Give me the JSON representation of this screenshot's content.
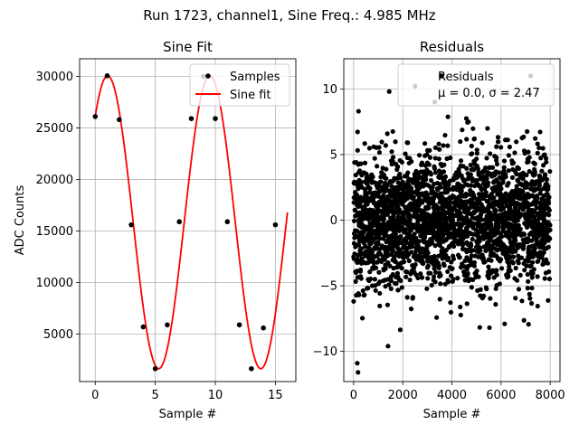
{
  "figure": {
    "suptitle": "Run 1723, channel1, Sine Freq.: 4.985 MHz"
  },
  "chart_data": [
    {
      "type": "scatter+line",
      "title": "Sine Fit",
      "xlabel": "Sample #",
      "ylabel": "ADC Counts",
      "xlim": [
        -1.3,
        16.7
      ],
      "ylim": [
        400,
        31700
      ],
      "xticks": [
        0,
        5,
        10,
        15
      ],
      "yticks": [
        5000,
        10000,
        15000,
        20000,
        25000,
        30000
      ],
      "grid": true,
      "legend": {
        "placement": "top-right",
        "entries": [
          {
            "label": "Samples",
            "marker": "dot",
            "color": "#000000"
          },
          {
            "label": "Sine fit",
            "marker": "line",
            "color": "#ff0000"
          }
        ]
      },
      "samples": {
        "x": [
          0,
          1,
          2,
          3,
          4,
          5,
          6,
          7,
          8,
          9,
          10,
          11,
          12,
          13,
          14,
          15
        ],
        "y": [
          26100,
          30050,
          25800,
          15600,
          5700,
          1650,
          5900,
          15900,
          25900,
          30000,
          25900,
          15900,
          5900,
          1650,
          5600,
          15600
        ]
      },
      "fit": {
        "type": "sine",
        "offset": 15850,
        "amplitude": 14200,
        "period_samples": 8.5,
        "x_range": [
          0,
          16
        ],
        "color": "#ff0000"
      }
    },
    {
      "type": "scatter",
      "title": "Residuals",
      "xlabel": "Sample #",
      "ylabel": "",
      "xlim": [
        -400,
        8400
      ],
      "ylim": [
        -12.3,
        12.3
      ],
      "xticks": [
        0,
        2000,
        4000,
        6000,
        8000
      ],
      "yticks": [
        -10,
        -5,
        0,
        5,
        10
      ],
      "grid": true,
      "legend": {
        "placement": "top-right",
        "entries": [
          {
            "label": "Residuals",
            "marker": "dot",
            "color": "#000000"
          },
          {
            "label": "μ = 0.0, σ = 2.47",
            "marker": "none"
          }
        ]
      },
      "distribution": {
        "n_samples": 8000,
        "mean": 0.0,
        "std": 2.47,
        "x_range": [
          0,
          8000
        ]
      },
      "notable_points": {
        "x": [
          150,
          180,
          2500,
          3300,
          7200,
          1450,
          200,
          1400
        ],
        "y": [
          -10.9,
          -11.6,
          10.2,
          9.0,
          11.0,
          9.8,
          8.3,
          -9.6
        ]
      }
    }
  ]
}
